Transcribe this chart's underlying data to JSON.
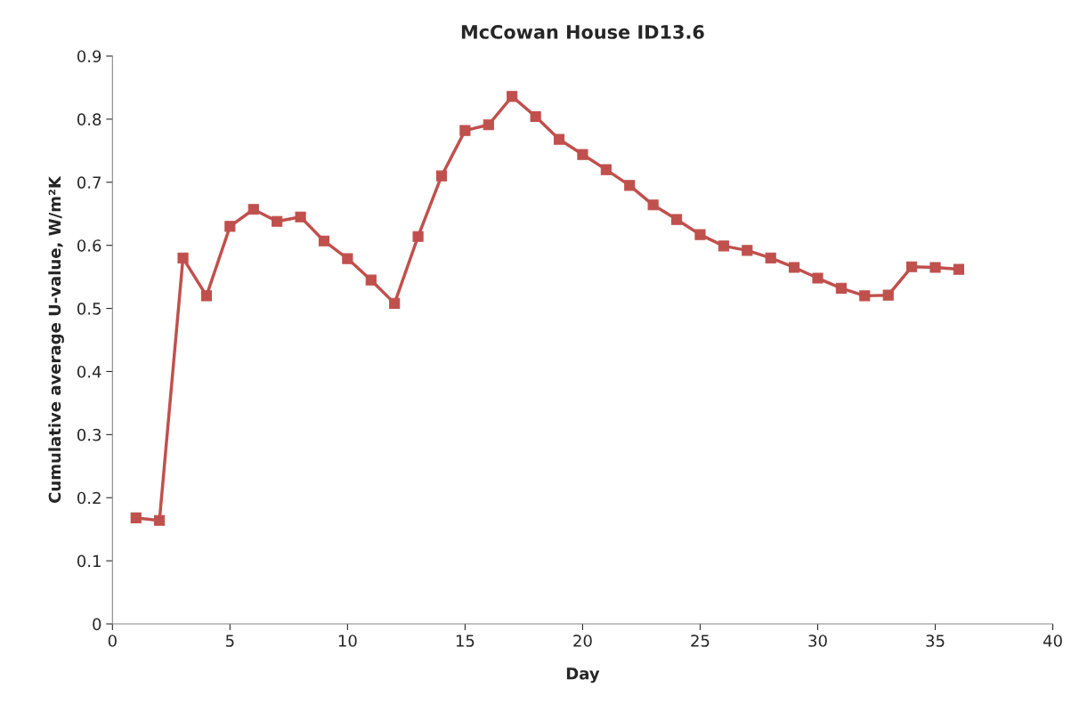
{
  "chart_data": {
    "type": "line",
    "title": "McCowan House ID13.6",
    "xlabel": "Day",
    "ylabel": "Cumulative average U-value, W/m²K",
    "x": [
      1,
      2,
      3,
      4,
      5,
      6,
      7,
      8,
      9,
      10,
      11,
      12,
      13,
      14,
      15,
      16,
      17,
      18,
      19,
      20,
      21,
      22,
      23,
      24,
      25,
      26,
      27,
      28,
      29,
      30,
      31,
      32,
      33,
      34,
      35,
      36
    ],
    "series": [
      {
        "color": "#c0504d",
        "values": [
          0.168,
          0.164,
          0.58,
          0.52,
          0.63,
          0.657,
          0.638,
          0.645,
          0.607,
          0.579,
          0.545,
          0.508,
          0.614,
          0.71,
          0.782,
          0.791,
          0.836,
          0.804,
          0.768,
          0.744,
          0.72,
          0.695,
          0.664,
          0.641,
          0.617,
          0.599,
          0.592,
          0.58,
          0.565,
          0.548,
          0.532,
          0.52,
          0.521,
          0.566,
          0.565,
          0.562
        ]
      }
    ],
    "xlim": [
      0,
      40
    ],
    "xticks": [
      0,
      5,
      10,
      15,
      20,
      25,
      30,
      35,
      40
    ],
    "ylim": [
      0,
      0.9
    ],
    "yticks": [
      0,
      0.1,
      0.2,
      0.3,
      0.4,
      0.5,
      0.6,
      0.7,
      0.8,
      0.9
    ],
    "grid": false,
    "marker": "square",
    "line_style": "solid"
  }
}
